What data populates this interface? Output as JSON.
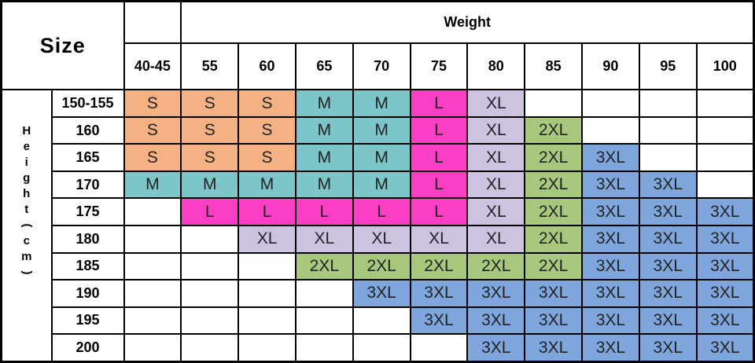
{
  "chart_data": {
    "type": "table",
    "size_label": "Size",
    "weight_label": "Weight",
    "height_label_chars": [
      "H",
      "e",
      "i",
      "g",
      "h",
      "t",
      "(",
      "c",
      "m",
      ")"
    ],
    "columns": [
      "40-45",
      "55",
      "60",
      "65",
      "70",
      "75",
      "80",
      "85",
      "90",
      "95",
      "100"
    ],
    "rows": [
      "150-155",
      "160",
      "165",
      "170",
      "175",
      "180",
      "185",
      "190",
      "195",
      "200"
    ],
    "cells": [
      [
        "S",
        "S",
        "S",
        "M",
        "M",
        "L",
        "XL",
        "",
        "",
        "",
        ""
      ],
      [
        "S",
        "S",
        "S",
        "M",
        "M",
        "L",
        "XL",
        "2XL",
        "",
        "",
        ""
      ],
      [
        "S",
        "S",
        "S",
        "M",
        "M",
        "L",
        "XL",
        "2XL",
        "3XL",
        "",
        ""
      ],
      [
        "M",
        "M",
        "M",
        "M",
        "M",
        "L",
        "XL",
        "2XL",
        "3XL",
        "3XL",
        ""
      ],
      [
        "",
        "L",
        "L",
        "L",
        "L",
        "L",
        "XL",
        "2XL",
        "3XL",
        "3XL",
        "3XL"
      ],
      [
        "",
        "",
        "XL",
        "XL",
        "XL",
        "XL",
        "XL",
        "2XL",
        "3XL",
        "3XL",
        "3XL"
      ],
      [
        "",
        "",
        "",
        "2XL",
        "2XL",
        "2XL",
        "2XL",
        "2XL",
        "3XL",
        "3XL",
        "3XL"
      ],
      [
        "",
        "",
        "",
        "",
        "3XL",
        "3XL",
        "3XL",
        "3XL",
        "3XL",
        "3XL",
        "3XL"
      ],
      [
        "",
        "",
        "",
        "",
        "",
        "3XL",
        "3XL",
        "3XL",
        "3XL",
        "3XL",
        "3XL"
      ],
      [
        "",
        "",
        "",
        "",
        "",
        "",
        "3XL",
        "3XL",
        "3XL",
        "3XL",
        "3XL"
      ]
    ],
    "size_colors": {
      "S": "#F4B183",
      "M": "#7CC5C9",
      "L": "#FA3FC4",
      "XL": "#CDC3E0",
      "2XL": "#A8C87D",
      "3XL": "#7EA6DC"
    },
    "border_color": "#000000",
    "background_color": "#FFFFFF"
  }
}
